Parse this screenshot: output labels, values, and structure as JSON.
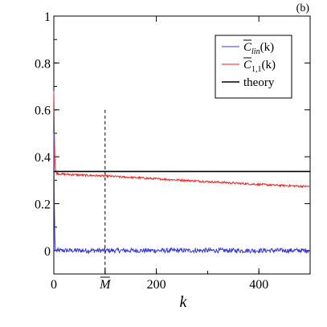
{
  "chart_data": {
    "type": "line",
    "panel_label": "(b)",
    "xlabel": "k",
    "ylabel": "",
    "xlim": [
      0,
      500
    ],
    "ylim": [
      -0.1,
      1.0
    ],
    "x_ticks": [
      {
        "value": 0,
        "label": "0"
      },
      {
        "value": 200,
        "label": "200"
      },
      {
        "value": 400,
        "label": "400"
      }
    ],
    "y_ticks": [
      {
        "value": 0,
        "label": "0"
      },
      {
        "value": 0.2,
        "label": "0.2"
      },
      {
        "value": 0.4,
        "label": "0.4"
      },
      {
        "value": 0.6,
        "label": "0.6"
      },
      {
        "value": 0.8,
        "label": "0.8"
      },
      {
        "value": 1.0,
        "label": "1"
      }
    ],
    "annotations": [
      {
        "type": "vline",
        "x": 100,
        "y_top": 0.6,
        "style": "dashed",
        "label": "M"
      }
    ],
    "legend": {
      "placement": "top-right",
      "entries": [
        {
          "text": "C̄_lin(k)",
          "base": "C",
          "sub": "lin",
          "arg": "(k)",
          "color": "#3a3ad8"
        },
        {
          "text": "C̄_1,1(k)",
          "base": "C",
          "sub": "1,1",
          "arg": "(k)",
          "color": "#ff1a1a"
        },
        {
          "text": "theory",
          "color": "#000000"
        }
      ]
    },
    "series": [
      {
        "legend_index": 0,
        "color": "#3a3ad8",
        "x": [
          0,
          1,
          2,
          3,
          5,
          10,
          50,
          100,
          150,
          200,
          250,
          300,
          350,
          400,
          450,
          500
        ],
        "y": [
          0.5,
          0.2,
          0.05,
          0.0,
          0.0,
          0.0,
          0.0,
          0.0,
          0.0,
          0.0,
          0.0,
          0.0,
          0.0,
          0.0,
          0.0,
          0.0
        ],
        "noise": 0.01
      },
      {
        "legend_index": 1,
        "color": "#ff1a1a",
        "x": [
          0,
          1,
          2,
          3,
          5,
          10,
          25,
          50,
          100,
          150,
          200,
          250,
          300,
          350,
          400,
          450,
          500
        ],
        "y": [
          0.68,
          0.5,
          0.4,
          0.35,
          0.33,
          0.327,
          0.325,
          0.322,
          0.318,
          0.312,
          0.306,
          0.3,
          0.294,
          0.288,
          0.282,
          0.277,
          0.273
        ],
        "noise": 0.004
      },
      {
        "legend_index": 2,
        "color": "#000000",
        "x": [
          0,
          500
        ],
        "y": [
          0.337,
          0.337
        ],
        "noise": 0
      }
    ]
  }
}
